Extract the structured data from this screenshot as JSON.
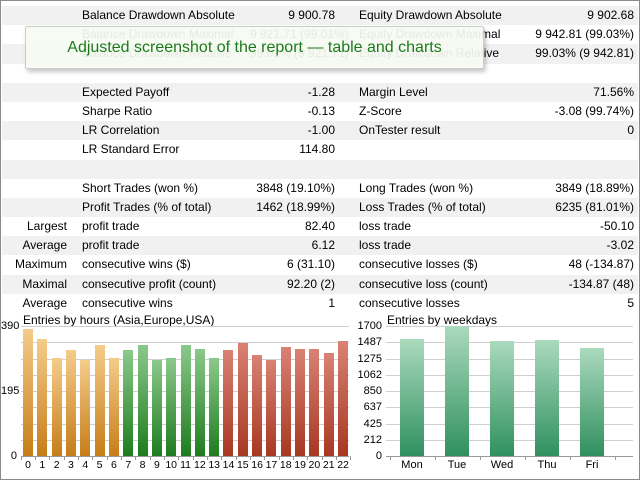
{
  "tooltip": {
    "text": "Adjusted screenshot of the report — table and charts"
  },
  "table": {
    "rows": [
      {
        "prefix": "",
        "name1": "Balance Drawdown Absolute",
        "val1": "9 900.78",
        "name2": "Equity Drawdown Absolute",
        "val2": "9 902.68",
        "shade": true
      },
      {
        "prefix": "",
        "name1": "Balance Drawdown Maximal",
        "val1": "9 921.71 (99.01%)",
        "name2": "Equity Drawdown Maximal",
        "val2": "9 942.81 (99.03%)",
        "shade": false
      },
      {
        "prefix": "",
        "name1": "Balance Drawdown Relative",
        "val1": "99.01% (9 921.71)",
        "name2": "Equity Drawdown Relative",
        "val2": "99.03% (9 942.81)",
        "shade": true
      },
      {
        "prefix": "",
        "name1": "",
        "val1": "",
        "name2": "",
        "val2": "",
        "shade": false
      },
      {
        "prefix": "",
        "name1": "Expected Payoff",
        "val1": "-1.28",
        "name2": "Margin Level",
        "val2": "71.56%",
        "shade": true
      },
      {
        "prefix": "",
        "name1": "Sharpe Ratio",
        "val1": "-0.13",
        "name2": "Z-Score",
        "val2": "-3.08 (99.74%)",
        "shade": false
      },
      {
        "prefix": "",
        "name1": "LR Correlation",
        "val1": "-1.00",
        "name2": "OnTester result",
        "val2": "0",
        "shade": true
      },
      {
        "prefix": "",
        "name1": "LR Standard Error",
        "val1": "114.80",
        "name2": "",
        "val2": "",
        "shade": false
      },
      {
        "prefix": "",
        "name1": "",
        "val1": "",
        "name2": "",
        "val2": "",
        "shade": true
      },
      {
        "prefix": "",
        "name1": "Short Trades (won %)",
        "val1": "3848 (19.10%)",
        "name2": "Long Trades (won %)",
        "val2": "3849 (18.89%)",
        "shade": false
      },
      {
        "prefix": "",
        "name1": "Profit Trades (% of total)",
        "val1": "1462 (18.99%)",
        "name2": "Loss Trades (% of total)",
        "val2": "6235 (81.01%)",
        "shade": true
      },
      {
        "prefix": "Largest",
        "name1": "profit trade",
        "val1": "82.40",
        "name2": "loss trade",
        "val2": "-50.10",
        "shade": false
      },
      {
        "prefix": "Average",
        "name1": "profit trade",
        "val1": "6.12",
        "name2": "loss trade",
        "val2": "-3.02",
        "shade": true
      },
      {
        "prefix": "Maximum",
        "name1": "consecutive wins ($)",
        "val1": "6 (31.10)",
        "name2": "consecutive losses ($)",
        "val2": "48 (-134.87)",
        "shade": false
      },
      {
        "prefix": "Maximal",
        "name1": "consecutive profit (count)",
        "val1": "92.20 (2)",
        "name2": "consecutive loss (count)",
        "val2": "-134.87 (48)",
        "shade": true
      },
      {
        "prefix": "Average",
        "name1": "consecutive wins",
        "val1": "1",
        "name2": "consecutive losses",
        "val2": "5",
        "shade": false
      }
    ]
  },
  "chart_data": [
    {
      "type": "bar",
      "title": "Entries by hours (Asia,Europe,USA)",
      "categories": [
        "0",
        "1",
        "2",
        "3",
        "4",
        "5",
        "6",
        "7",
        "8",
        "9",
        "10",
        "11",
        "12",
        "13",
        "14",
        "15",
        "16",
        "17",
        "18",
        "19",
        "20",
        "21",
        "22"
      ],
      "values": [
        382,
        352,
        295,
        317,
        288,
        333,
        295,
        318,
        333,
        288,
        295,
        332,
        320,
        295,
        318,
        340,
        302,
        287,
        327,
        320,
        320,
        308,
        345
      ],
      "ylim": [
        0,
        390
      ],
      "grid": true,
      "gridline_divisions": 8,
      "y_tick_labels": [
        {
          "v": 390,
          "t": "390"
        },
        {
          "v": 195,
          "t": "195"
        },
        {
          "v": 0,
          "t": "0"
        }
      ],
      "bar_color_keys": [
        "orange",
        "orange",
        "orange",
        "orange",
        "orange",
        "orange",
        "orange",
        "green",
        "green",
        "green",
        "green",
        "green",
        "green",
        "green",
        "red",
        "red",
        "red",
        "red",
        "red",
        "red",
        "red",
        "red",
        "red"
      ]
    },
    {
      "type": "bar",
      "title": "Entries by weekdays",
      "categories": [
        "Mon",
        "Tue",
        "Wed",
        "Thu",
        "Fri"
      ],
      "values": [
        1530,
        1700,
        1500,
        1520,
        1410
      ],
      "ylim": [
        0,
        1700
      ],
      "grid": true,
      "gridline_divisions": 8,
      "y_tick_labels": [
        {
          "v": 1700,
          "t": "1700"
        },
        {
          "v": 1487,
          "t": "1487"
        },
        {
          "v": 1275,
          "t": "1275"
        },
        {
          "v": 1062,
          "t": "1062"
        },
        {
          "v": 850,
          "t": "850"
        },
        {
          "v": 637,
          "t": "637"
        },
        {
          "v": 425,
          "t": "425"
        },
        {
          "v": 212,
          "t": "212"
        },
        {
          "v": 0,
          "t": "0"
        }
      ],
      "bar_color_keys": [
        "seagreen",
        "seagreen",
        "seagreen",
        "seagreen",
        "seagreen"
      ]
    }
  ],
  "colors": {
    "row_shade": "#f1f1f1",
    "tooltip_text": "#1b7b1b",
    "gridline": "#cfcfcf",
    "axis": "#999999",
    "palette": {
      "orange": {
        "top": "#f5cc8b",
        "bottom": "#c67d18"
      },
      "green": {
        "top": "#8bc98b",
        "bottom": "#1e7c1e"
      },
      "red": {
        "top": "#d98274",
        "bottom": "#a83822"
      },
      "seagreen": {
        "top": "#abdabd",
        "bottom": "#30905f"
      }
    }
  }
}
